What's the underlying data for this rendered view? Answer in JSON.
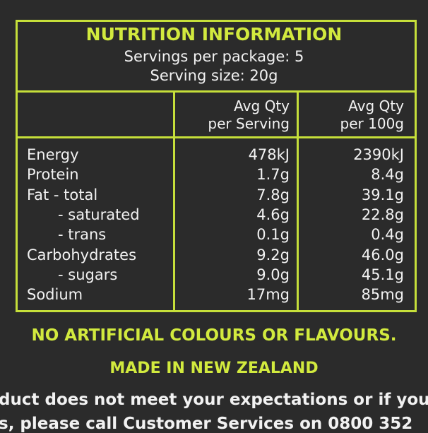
{
  "header": {
    "title": "NUTRITION INFORMATION",
    "servings": "Servings per package: 5",
    "serving_size": "Serving size: 20g"
  },
  "table": {
    "columns": [
      [
        "Avg Qty",
        "per Serving"
      ],
      [
        "Avg Qty",
        "per 100g"
      ]
    ],
    "rows": [
      [
        "Energy",
        "478kJ",
        "2390kJ"
      ],
      [
        "Protein",
        "1.7g",
        "8.4g"
      ],
      [
        "Fat - total",
        "7.8g",
        "39.1g"
      ],
      [
        "- saturated",
        "4.6g",
        "22.8g"
      ],
      [
        "- trans",
        "0.1g",
        "0.4g"
      ],
      [
        "Carbohydrates",
        "9.2g",
        "46.0g"
      ],
      [
        "- sugars",
        "9.0g",
        "45.1g"
      ],
      [
        "Sodium",
        "17mg",
        "85mg"
      ]
    ]
  },
  "footer": {
    "claim": "NO ARTIFICIAL COLOURS OR FLAVOURS.",
    "origin": "MADE IN NEW ZEALAND",
    "lines": [
      "duct does not meet your expectations or if you",
      "s, please call Customer Services on 0800 352"
    ]
  }
}
